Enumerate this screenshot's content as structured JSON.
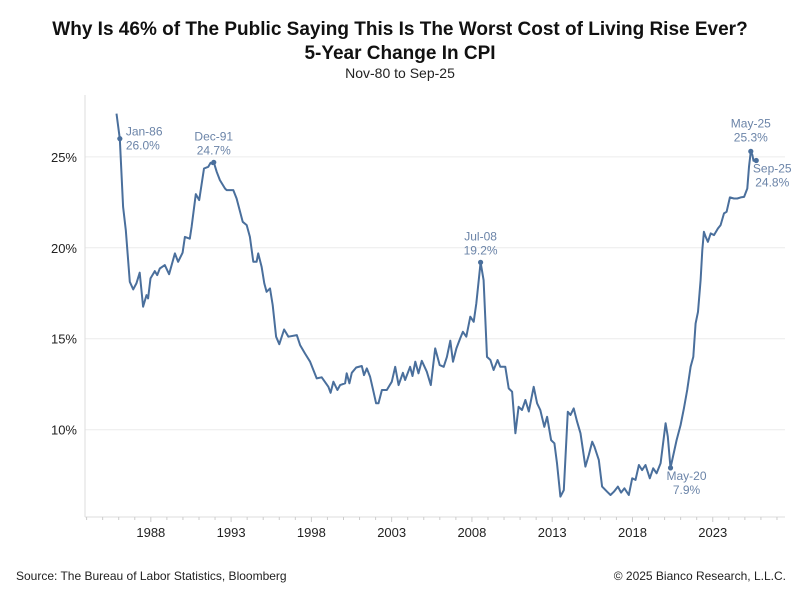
{
  "title_line1": "Why Is 46% of The Public Saying This Is The Worst Cost of Living Rise Ever?",
  "title_line2": "5-Year Change In CPI",
  "subtitle": "Nov-80 to Sep-25",
  "source": "Source: The Bureau of Labor Statistics, Bloomberg",
  "copyright": "© 2025 Bianco Research, L.L.C.",
  "chart_data": {
    "type": "line",
    "title": "Why Is 46% of The Public Saying This Is The Worst Cost of Living Rise Ever? 5-Year Change In CPI",
    "subtitle": "Nov-80 to Sep-25",
    "xlabel": "",
    "ylabel": "",
    "xlim": [
      1983.9,
      2027.5
    ],
    "ylim": [
      5.2,
      28.4
    ],
    "x_ticks": [
      1988,
      1993,
      1998,
      2003,
      2008,
      2013,
      2018,
      2023
    ],
    "y_ticks": [
      10,
      15,
      20,
      25
    ],
    "y_tick_labels": [
      "10%",
      "15%",
      "20%",
      "25%"
    ],
    "grid": "horizontal",
    "line_color": "#4a6f9c",
    "annotation_color": "#6b84a8",
    "series": [
      {
        "points": [
          [
            1985.86,
            27.38
          ],
          [
            1986.07,
            26.0
          ],
          [
            1986.27,
            22.25
          ],
          [
            1986.44,
            20.97
          ],
          [
            1986.69,
            18.13
          ],
          [
            1986.9,
            17.71
          ],
          [
            1987.1,
            18.04
          ],
          [
            1987.31,
            18.63
          ],
          [
            1987.52,
            16.76
          ],
          [
            1987.73,
            17.4
          ],
          [
            1987.83,
            17.22
          ],
          [
            1987.98,
            18.32
          ],
          [
            1988.25,
            18.72
          ],
          [
            1988.4,
            18.5
          ],
          [
            1988.56,
            18.86
          ],
          [
            1988.87,
            19.05
          ],
          [
            1989.14,
            18.55
          ],
          [
            1989.5,
            19.69
          ],
          [
            1989.7,
            19.23
          ],
          [
            1989.98,
            19.73
          ],
          [
            1990.12,
            20.6
          ],
          [
            1990.43,
            20.5
          ],
          [
            1990.54,
            21.15
          ],
          [
            1990.8,
            22.95
          ],
          [
            1991.01,
            22.62
          ],
          [
            1991.31,
            24.36
          ],
          [
            1991.58,
            24.45
          ],
          [
            1991.72,
            24.67
          ],
          [
            1991.85,
            24.6
          ],
          [
            1991.92,
            24.7
          ],
          [
            1992.1,
            24.18
          ],
          [
            1992.3,
            23.72
          ],
          [
            1992.62,
            23.26
          ],
          [
            1992.72,
            23.17
          ],
          [
            1993.14,
            23.17
          ],
          [
            1993.34,
            22.71
          ],
          [
            1993.72,
            21.43
          ],
          [
            1993.97,
            21.25
          ],
          [
            1994.17,
            20.6
          ],
          [
            1994.38,
            19.23
          ],
          [
            1994.59,
            19.23
          ],
          [
            1994.69,
            19.69
          ],
          [
            1994.9,
            18.96
          ],
          [
            1995.07,
            18.04
          ],
          [
            1995.21,
            17.58
          ],
          [
            1995.42,
            17.77
          ],
          [
            1995.59,
            16.85
          ],
          [
            1995.8,
            15.11
          ],
          [
            1996.0,
            14.7
          ],
          [
            1996.3,
            15.51
          ],
          [
            1996.57,
            15.11
          ],
          [
            1997.09,
            15.2
          ],
          [
            1997.3,
            14.65
          ],
          [
            1997.6,
            14.19
          ],
          [
            1997.92,
            13.74
          ],
          [
            1998.33,
            12.82
          ],
          [
            1998.64,
            12.88
          ],
          [
            1999.06,
            12.36
          ],
          [
            1999.2,
            12.03
          ],
          [
            1999.37,
            12.64
          ],
          [
            1999.62,
            12.18
          ],
          [
            1999.79,
            12.45
          ],
          [
            2000.1,
            12.55
          ],
          [
            2000.2,
            13.1
          ],
          [
            2000.37,
            12.55
          ],
          [
            2000.52,
            13.13
          ],
          [
            2000.79,
            13.42
          ],
          [
            2001.14,
            13.5
          ],
          [
            2001.28,
            13.0
          ],
          [
            2001.45,
            13.37
          ],
          [
            2001.66,
            12.91
          ],
          [
            2001.87,
            12.09
          ],
          [
            2002.03,
            11.45
          ],
          [
            2002.18,
            11.45
          ],
          [
            2002.39,
            12.18
          ],
          [
            2002.7,
            12.18
          ],
          [
            2003.01,
            12.64
          ],
          [
            2003.22,
            13.46
          ],
          [
            2003.43,
            12.45
          ],
          [
            2003.7,
            13.13
          ],
          [
            2003.84,
            12.73
          ],
          [
            2004.15,
            13.46
          ],
          [
            2004.3,
            12.95
          ],
          [
            2004.47,
            13.74
          ],
          [
            2004.67,
            13.1
          ],
          [
            2004.88,
            13.79
          ],
          [
            2005.19,
            13.19
          ],
          [
            2005.44,
            12.45
          ],
          [
            2005.71,
            14.47
          ],
          [
            2005.99,
            13.55
          ],
          [
            2006.24,
            13.46
          ],
          [
            2006.44,
            14.0
          ],
          [
            2006.65,
            14.89
          ],
          [
            2006.82,
            13.74
          ],
          [
            2007.03,
            14.47
          ],
          [
            2007.27,
            15.02
          ],
          [
            2007.44,
            15.38
          ],
          [
            2007.65,
            15.11
          ],
          [
            2007.9,
            16.21
          ],
          [
            2008.11,
            15.93
          ],
          [
            2008.27,
            16.94
          ],
          [
            2008.54,
            19.2
          ],
          [
            2008.73,
            18.22
          ],
          [
            2008.94,
            14.0
          ],
          [
            2009.15,
            13.83
          ],
          [
            2009.35,
            13.28
          ],
          [
            2009.6,
            13.83
          ],
          [
            2009.77,
            13.46
          ],
          [
            2010.08,
            13.46
          ],
          [
            2010.29,
            12.27
          ],
          [
            2010.5,
            12.09
          ],
          [
            2010.71,
            9.8
          ],
          [
            2010.91,
            11.26
          ],
          [
            2011.12,
            11.08
          ],
          [
            2011.33,
            11.63
          ],
          [
            2011.54,
            11.0
          ],
          [
            2011.85,
            12.36
          ],
          [
            2012.06,
            11.45
          ],
          [
            2012.26,
            11.08
          ],
          [
            2012.51,
            10.16
          ],
          [
            2012.68,
            10.71
          ],
          [
            2012.93,
            9.43
          ],
          [
            2013.14,
            9.25
          ],
          [
            2013.3,
            8.15
          ],
          [
            2013.51,
            6.32
          ],
          [
            2013.72,
            6.68
          ],
          [
            2013.97,
            10.99
          ],
          [
            2014.14,
            10.81
          ],
          [
            2014.34,
            11.17
          ],
          [
            2014.55,
            10.44
          ],
          [
            2014.76,
            9.8
          ],
          [
            2015.07,
            7.97
          ],
          [
            2015.28,
            8.61
          ],
          [
            2015.49,
            9.34
          ],
          [
            2015.63,
            9.07
          ],
          [
            2015.9,
            8.34
          ],
          [
            2016.11,
            6.87
          ],
          [
            2016.42,
            6.59
          ],
          [
            2016.63,
            6.41
          ],
          [
            2016.84,
            6.59
          ],
          [
            2017.09,
            6.87
          ],
          [
            2017.29,
            6.54
          ],
          [
            2017.5,
            6.78
          ],
          [
            2017.77,
            6.41
          ],
          [
            2017.98,
            7.33
          ],
          [
            2018.19,
            7.24
          ],
          [
            2018.4,
            8.06
          ],
          [
            2018.6,
            7.78
          ],
          [
            2018.81,
            8.06
          ],
          [
            2019.08,
            7.33
          ],
          [
            2019.29,
            7.88
          ],
          [
            2019.5,
            7.6
          ],
          [
            2019.75,
            8.15
          ],
          [
            2020.06,
            10.35
          ],
          [
            2020.2,
            9.62
          ],
          [
            2020.37,
            7.9
          ],
          [
            2020.75,
            9.43
          ],
          [
            2021.0,
            10.26
          ],
          [
            2021.2,
            11.17
          ],
          [
            2021.41,
            12.18
          ],
          [
            2021.62,
            13.46
          ],
          [
            2021.79,
            14.0
          ],
          [
            2021.93,
            15.84
          ],
          [
            2022.08,
            16.48
          ],
          [
            2022.24,
            18.22
          ],
          [
            2022.35,
            19.87
          ],
          [
            2022.45,
            20.88
          ],
          [
            2022.56,
            20.6
          ],
          [
            2022.7,
            20.33
          ],
          [
            2022.87,
            20.79
          ],
          [
            2023.08,
            20.7
          ],
          [
            2023.32,
            21.06
          ],
          [
            2023.49,
            21.25
          ],
          [
            2023.7,
            21.89
          ],
          [
            2023.86,
            21.98
          ],
          [
            2024.07,
            22.77
          ],
          [
            2024.32,
            22.71
          ],
          [
            2024.53,
            22.71
          ],
          [
            2024.74,
            22.77
          ],
          [
            2024.95,
            22.8
          ],
          [
            2025.15,
            23.26
          ],
          [
            2025.26,
            24.45
          ],
          [
            2025.37,
            25.3
          ],
          [
            2025.47,
            25.1
          ],
          [
            2025.54,
            24.78
          ],
          [
            2025.62,
            24.85
          ],
          [
            2025.71,
            24.8
          ]
        ]
      }
    ],
    "annotations": [
      {
        "date": "Jan-86",
        "x": 1986.07,
        "value": 26.0,
        "label": "26.0%"
      },
      {
        "date": "Dec-91",
        "x": 1991.92,
        "value": 24.7,
        "label": "24.7%"
      },
      {
        "date": "Jul-08",
        "x": 2008.54,
        "value": 19.2,
        "label": "19.2%"
      },
      {
        "date": "May-20",
        "x": 2020.37,
        "value": 7.9,
        "label": "7.9%"
      },
      {
        "date": "May-25",
        "x": 2025.37,
        "value": 25.3,
        "label": "25.3%"
      },
      {
        "date": "Sep-25",
        "x": 2025.71,
        "value": 24.8,
        "label": "24.8%"
      }
    ]
  }
}
